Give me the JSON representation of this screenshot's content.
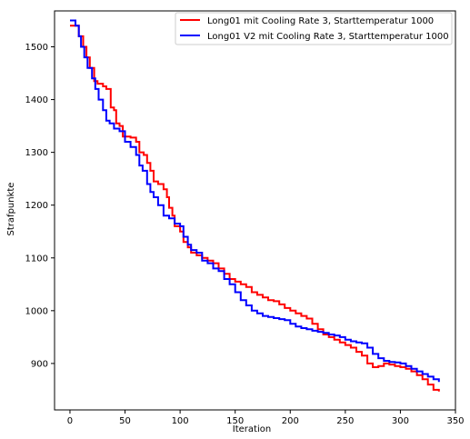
{
  "chart_data": {
    "type": "line",
    "title": "",
    "xlabel": "Iteration",
    "ylabel": "Strafpunkte",
    "xlim": [
      -14,
      350
    ],
    "ylim": [
      812,
      1568
    ],
    "xticks": [
      0,
      50,
      100,
      150,
      200,
      250,
      300,
      350
    ],
    "yticks": [
      900,
      1000,
      1100,
      1200,
      1300,
      1400,
      1500
    ],
    "grid": false,
    "legend_position": "top-right",
    "series": [
      {
        "name": "Long01 mit Cooling Rate 3, Starttemperatur 1000",
        "color": "#ff0000",
        "x": [
          0,
          5,
          8,
          12,
          15,
          18,
          22,
          25,
          30,
          33,
          37,
          40,
          42,
          45,
          48,
          52,
          55,
          60,
          63,
          67,
          70,
          73,
          76,
          80,
          85,
          88,
          90,
          93,
          95,
          100,
          103,
          107,
          110,
          115,
          120,
          125,
          130,
          135,
          140,
          145,
          150,
          155,
          160,
          165,
          170,
          175,
          180,
          185,
          190,
          195,
          200,
          205,
          210,
          215,
          220,
          225,
          230,
          235,
          240,
          245,
          250,
          255,
          260,
          265,
          270,
          275,
          280,
          285,
          290,
          295,
          300,
          305,
          310,
          315,
          320,
          325,
          330,
          335
        ],
        "y": [
          1540,
          1540,
          1520,
          1500,
          1480,
          1460,
          1435,
          1430,
          1425,
          1420,
          1385,
          1380,
          1355,
          1350,
          1330,
          1330,
          1328,
          1320,
          1300,
          1295,
          1280,
          1265,
          1245,
          1240,
          1230,
          1215,
          1195,
          1180,
          1160,
          1150,
          1130,
          1120,
          1110,
          1105,
          1100,
          1095,
          1090,
          1080,
          1070,
          1060,
          1055,
          1050,
          1045,
          1035,
          1030,
          1025,
          1020,
          1018,
          1012,
          1005,
          1000,
          995,
          990,
          985,
          975,
          965,
          955,
          950,
          945,
          940,
          935,
          930,
          922,
          915,
          900,
          893,
          895,
          900,
          898,
          895,
          893,
          890,
          885,
          878,
          870,
          860,
          850,
          847
        ]
      },
      {
        "name": "Long01 V2 mit Cooling Rate 3, Starttemperatur 1000",
        "color": "#0000ff",
        "x": [
          0,
          3,
          5,
          8,
          10,
          13,
          16,
          20,
          23,
          26,
          30,
          33,
          36,
          40,
          45,
          50,
          55,
          60,
          63,
          66,
          70,
          73,
          76,
          80,
          85,
          90,
          95,
          100,
          103,
          107,
          110,
          115,
          120,
          125,
          130,
          135,
          140,
          145,
          150,
          155,
          160,
          165,
          170,
          175,
          180,
          185,
          190,
          195,
          200,
          205,
          210,
          215,
          220,
          225,
          230,
          235,
          240,
          245,
          250,
          255,
          260,
          265,
          270,
          275,
          280,
          285,
          290,
          295,
          300,
          305,
          310,
          315,
          320,
          325,
          330,
          335
        ],
        "y": [
          1550,
          1550,
          1540,
          1520,
          1500,
          1480,
          1460,
          1440,
          1420,
          1400,
          1380,
          1360,
          1355,
          1345,
          1340,
          1320,
          1310,
          1295,
          1275,
          1265,
          1240,
          1225,
          1215,
          1200,
          1180,
          1175,
          1165,
          1160,
          1140,
          1125,
          1115,
          1110,
          1095,
          1090,
          1080,
          1075,
          1060,
          1050,
          1035,
          1020,
          1010,
          1000,
          995,
          990,
          988,
          986,
          984,
          982,
          975,
          970,
          967,
          965,
          962,
          960,
          958,
          955,
          953,
          950,
          945,
          942,
          940,
          938,
          930,
          918,
          910,
          905,
          903,
          902,
          900,
          895,
          890,
          885,
          880,
          875,
          870,
          865
        ]
      }
    ]
  }
}
